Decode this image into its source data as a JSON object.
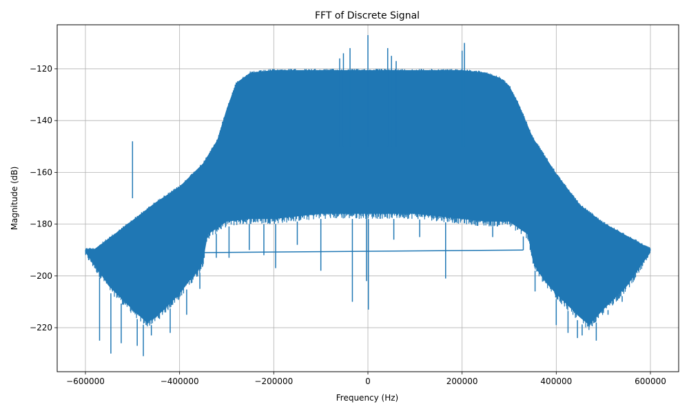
{
  "chart_data": {
    "type": "line",
    "title": "FFT of Discrete Signal",
    "xlabel": "Frequency (Hz)",
    "ylabel": "Magnitude (dB)",
    "xlim": [
      -660000,
      660000
    ],
    "ylim": [
      -237,
      -103
    ],
    "x_ticks": [
      -600000,
      -400000,
      -200000,
      0,
      200000,
      400000,
      600000
    ],
    "x_tick_labels": [
      "−600000",
      "−400000",
      "−200000",
      "0",
      "200000",
      "400000",
      "600000"
    ],
    "y_ticks": [
      -220,
      -200,
      -180,
      -160,
      -140,
      -120
    ],
    "y_tick_labels": [
      "−220",
      "−200",
      "−180",
      "−160",
      "−140",
      "−120"
    ],
    "grid": true,
    "series": [
      {
        "color": "#1f77b4",
        "upper_envelope": {
          "x": [
            -600000,
            -580000,
            -550000,
            -500000,
            -450000,
            -400000,
            -350000,
            -320000,
            -300000,
            -280000,
            -250000,
            -200000,
            -100000,
            0,
            100000,
            200000,
            250000,
            280000,
            300000,
            320000,
            350000,
            400000,
            450000,
            500000,
            550000,
            580000,
            600000
          ],
          "y": [
            -189,
            -189,
            -185,
            -178,
            -171,
            -165,
            -156,
            -147,
            -135,
            -125,
            -121,
            -120,
            -120,
            -120,
            -120,
            -120,
            -121,
            -123,
            -126,
            -133,
            -146,
            -160,
            -172,
            -179,
            -184,
            -187,
            -189
          ]
        },
        "lower_envelope": {
          "x": [
            -600000,
            -580000,
            -550000,
            -500000,
            -470000,
            -450000,
            -400000,
            -380000,
            -360000,
            -350000,
            -340000,
            -300000,
            -250000,
            -200000,
            -100000,
            0,
            100000,
            200000,
            250000,
            300000,
            340000,
            350000,
            360000,
            380000,
            400000,
            450000,
            470000,
            500000,
            550000,
            580000,
            600000
          ],
          "y": [
            -193,
            -198,
            -206,
            -215,
            -220,
            -218,
            -209,
            -204,
            -200,
            -196,
            -186,
            -181,
            -180,
            -180,
            -178,
            -178,
            -178,
            -180,
            -181,
            -181,
            -186,
            -196,
            -200,
            -205,
            -209,
            -218,
            -221,
            -215,
            -206,
            -198,
            -193
          ]
        },
        "dip_spikes": {
          "x": [
            -570000,
            -546000,
            -524000,
            -490000,
            -477000,
            -460000,
            -420000,
            -385000,
            -357000,
            -322000,
            -295000,
            -252000,
            -221000,
            -196000,
            -150000,
            -100000,
            -33000,
            -3000,
            1000,
            55000,
            110000,
            165000,
            265000,
            330000,
            355000,
            400000,
            425000,
            445000,
            455000,
            485000,
            510000,
            540000
          ],
          "y": [
            -225,
            -230,
            -226,
            -227,
            -231,
            -223,
            -222,
            -215,
            -205,
            -193,
            -193,
            -190,
            -192,
            -197,
            -188,
            -198,
            -210,
            -202,
            -213,
            -186,
            -185,
            -201,
            -185,
            -190,
            -206,
            -219,
            -222,
            -224,
            -223,
            -225,
            -215,
            -210
          ]
        },
        "peak_spikes": {
          "x": [
            -500000,
            -60000,
            -52000,
            -38000,
            0,
            42000,
            50000,
            60000,
            200000,
            205000
          ],
          "y": [
            -148,
            -116,
            -114,
            -112,
            -107,
            -112,
            -115,
            -117,
            -113,
            -110
          ]
        },
        "baseline": {
          "x": [
            -350000,
            330000
          ],
          "y": [
            -191,
            -190
          ]
        }
      }
    ]
  }
}
